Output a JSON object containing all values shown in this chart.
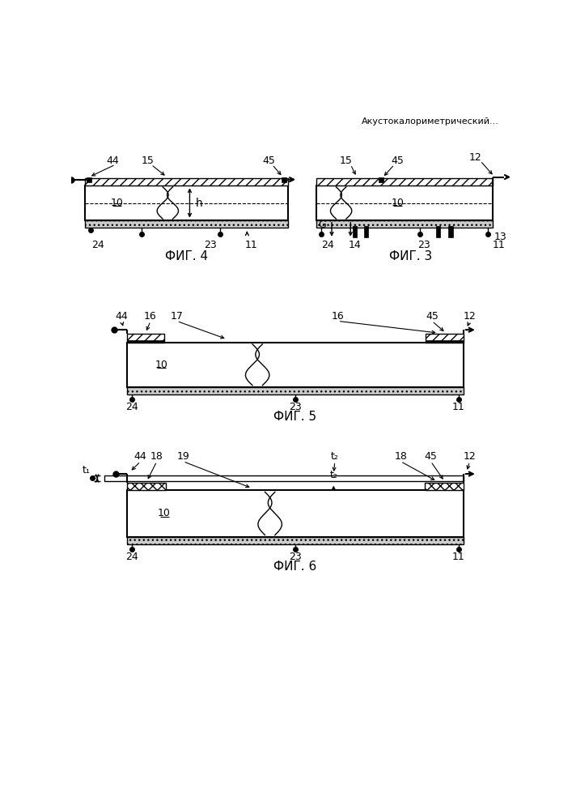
{
  "title_text": "Акустокалориметрический...",
  "fig4_label": "ФИГ. 4",
  "fig3_label": "ФИГ. 3",
  "fig5_label": "ФИГ. 5",
  "fig6_label": "ФИГ. 6",
  "bg_color": "#ffffff",
  "line_color": "#000000",
  "font_size_num": 9,
  "font_size_fig": 11
}
